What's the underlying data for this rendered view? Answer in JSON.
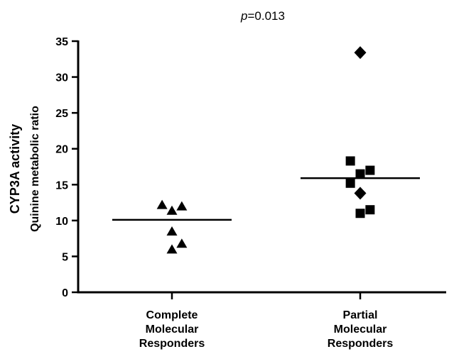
{
  "chart_data": {
    "type": "scatter",
    "annotation": {
      "italic": "p",
      "rest": "=0.013"
    },
    "ylabel": {
      "line1": "CYP3A activity",
      "line2": "Quinine metabolic ratio"
    },
    "ylim": [
      0,
      35
    ],
    "yticks": [
      0,
      5,
      10,
      15,
      20,
      25,
      30,
      35
    ],
    "categories": [
      {
        "lines": [
          "Complete",
          "Molecular",
          "Responders"
        ]
      },
      {
        "lines": [
          "Partial",
          "Molecular",
          "Responders"
        ]
      }
    ],
    "groups": [
      {
        "category": 0,
        "median": 10.1,
        "points": [
          {
            "y": 12.2,
            "marker": "triangle",
            "offset": -0.6
          },
          {
            "y": 11.4,
            "marker": "triangle",
            "offset": 0.0
          },
          {
            "y": 12.0,
            "marker": "triangle",
            "offset": 0.6
          },
          {
            "y": 8.5,
            "marker": "triangle",
            "offset": 0.0
          },
          {
            "y": 6.0,
            "marker": "triangle",
            "offset": 0.0
          },
          {
            "y": 6.8,
            "marker": "triangle",
            "offset": 0.6
          }
        ]
      },
      {
        "category": 1,
        "median": 15.9,
        "points": [
          {
            "y": 33.4,
            "marker": "diamond",
            "offset": 0.0
          },
          {
            "y": 18.3,
            "marker": "square",
            "offset": -0.6
          },
          {
            "y": 17.0,
            "marker": "square",
            "offset": 0.6
          },
          {
            "y": 16.5,
            "marker": "square",
            "offset": 0.0
          },
          {
            "y": 15.2,
            "marker": "square",
            "offset": -0.6
          },
          {
            "y": 13.8,
            "marker": "diamond",
            "offset": 0.0
          },
          {
            "y": 11.5,
            "marker": "square",
            "offset": 0.6
          },
          {
            "y": 11.0,
            "marker": "square",
            "offset": 0.0
          }
        ]
      }
    ]
  }
}
